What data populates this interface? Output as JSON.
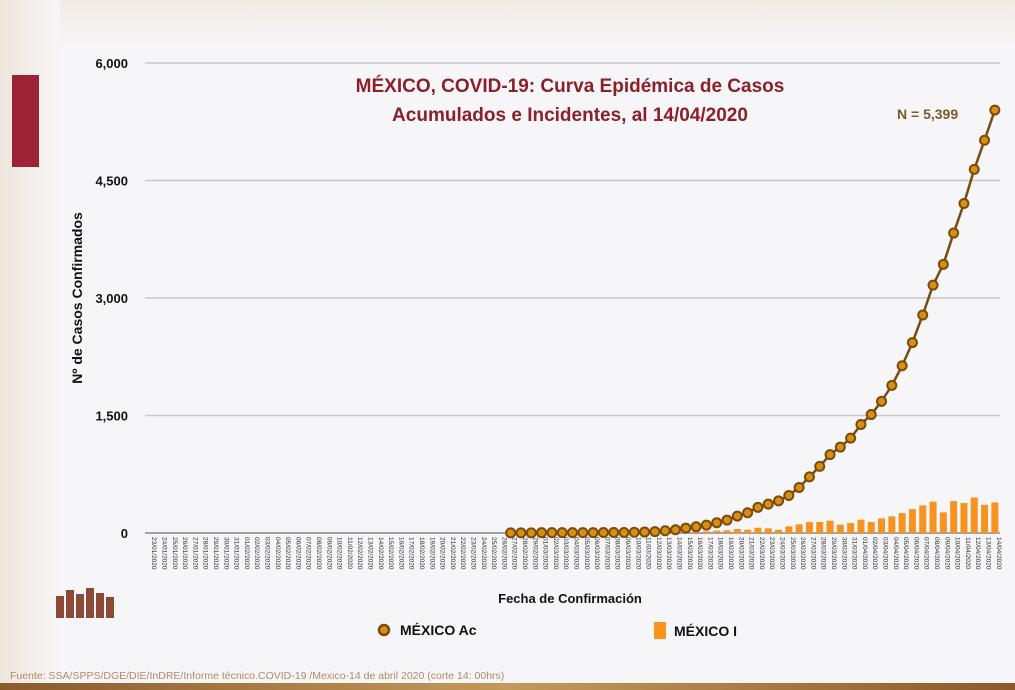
{
  "title_line1": "MÉXICO, COVID-19: Curva Epidémica de Casos",
  "title_line2": "Acumulados e Incidentes, al 14/04/2020",
  "footer": "Fuente: SSA/SPPS/DGE/DIE/InDRE/Informe técnico.COVID-19 /Mexico-14 de abril 2020 (corte 14: 00hrs)",
  "colors": {
    "title": "#8b1f2a",
    "line": "#7a4a10",
    "marker": "#d8900f",
    "bar": "#f7931e",
    "accent": "#9b2335"
  },
  "chart_data": {
    "type": "line+bar",
    "title": "MÉXICO, COVID-19: Curva Epidémica de Casos Acumulados e Incidentes, al 14/04/2020",
    "annotation": "N = 5,399",
    "xlabel": "Fecha de Confirmación",
    "ylabel": "Nº de Casos Confirmados",
    "ylim": [
      0,
      6000
    ],
    "yticks": [
      "0",
      "1,500",
      "3,000",
      "4,500",
      "6,000"
    ],
    "ytick_values": [
      0,
      1500,
      3000,
      4500,
      6000
    ],
    "grid": true,
    "legend_position": "bottom",
    "categories": [
      "23/01/2020",
      "24/01/2020",
      "25/01/2020",
      "26/01/2020",
      "27/01/2020",
      "28/01/2020",
      "29/01/2020",
      "30/01/2020",
      "31/01/2020",
      "01/02/2020",
      "02/02/2020",
      "03/02/2020",
      "04/02/2020",
      "05/02/2020",
      "06/02/2020",
      "07/02/2020",
      "08/02/2020",
      "09/02/2020",
      "10/02/2020",
      "11/02/2020",
      "12/02/2020",
      "13/02/2020",
      "14/02/2020",
      "15/02/2020",
      "16/02/2020",
      "17/02/2020",
      "18/02/2020",
      "19/02/2020",
      "20/02/2020",
      "21/02/2020",
      "22/02/2020",
      "23/02/2020",
      "24/02/2020",
      "25/02/2020",
      "26/02/2020",
      "27/02/2020",
      "28/02/2020",
      "29/02/2020",
      "01/03/2020",
      "02/03/2020",
      "03/03/2020",
      "04/03/2020",
      "05/03/2020",
      "06/03/2020",
      "07/03/2020",
      "08/03/2020",
      "09/03/2020",
      "10/03/2020",
      "11/03/2020",
      "12/03/2020",
      "13/03/2020",
      "14/03/2020",
      "15/03/2020",
      "16/03/2020",
      "17/03/2020",
      "18/03/2020",
      "19/03/2020",
      "20/03/2020",
      "21/03/2020",
      "22/03/2020",
      "23/03/2020",
      "24/03/2020",
      "25/03/2020",
      "26/03/2020",
      "27/03/2020",
      "28/03/2020",
      "29/03/2020",
      "30/03/2020",
      "31/03/2020",
      "01/04/2020",
      "02/04/2020",
      "03/04/2020",
      "04/04/2020",
      "05/04/2020",
      "06/04/2020",
      "07/04/2020",
      "08/04/2020",
      "09/04/2020",
      "10/04/2020",
      "11/04/2020",
      "12/04/2020",
      "13/04/2020",
      "14/04/2020"
    ],
    "series": [
      {
        "name": "MÉXICO Ac",
        "type": "line",
        "values": [
          null,
          null,
          null,
          null,
          null,
          null,
          null,
          null,
          null,
          null,
          null,
          null,
          null,
          null,
          null,
          null,
          null,
          null,
          null,
          null,
          null,
          null,
          null,
          null,
          null,
          null,
          null,
          null,
          null,
          null,
          null,
          null,
          null,
          null,
          null,
          1,
          1,
          2,
          4,
          5,
          5,
          5,
          5,
          5,
          6,
          7,
          7,
          9,
          12,
          17,
          29,
          42,
          63,
          80,
          101,
          131,
          165,
          216,
          258,
          327,
          368,
          410,
          479,
          581,
          716,
          851,
          1000,
          1097,
          1211,
          1385,
          1512,
          1681,
          1884,
          2135,
          2431,
          2783,
          3164,
          3430,
          3829,
          4206,
          4642,
          5014,
          5399
        ]
      },
      {
        "name": "MÉXICO I",
        "type": "bar",
        "values": [
          0,
          0,
          0,
          0,
          0,
          0,
          0,
          0,
          0,
          0,
          0,
          0,
          0,
          0,
          0,
          0,
          0,
          0,
          0,
          0,
          0,
          0,
          0,
          0,
          0,
          0,
          0,
          0,
          0,
          0,
          0,
          0,
          0,
          0,
          0,
          1,
          0,
          1,
          2,
          1,
          0,
          0,
          0,
          0,
          1,
          1,
          0,
          2,
          3,
          5,
          12,
          13,
          21,
          17,
          21,
          30,
          34,
          51,
          42,
          68,
          59,
          42,
          85,
          110,
          140,
          140,
          157,
          106,
          127,
          170,
          140,
          187,
          212,
          254,
          305,
          352,
          399,
          263,
          407,
          382,
          454,
          360,
          390
        ]
      }
    ]
  }
}
